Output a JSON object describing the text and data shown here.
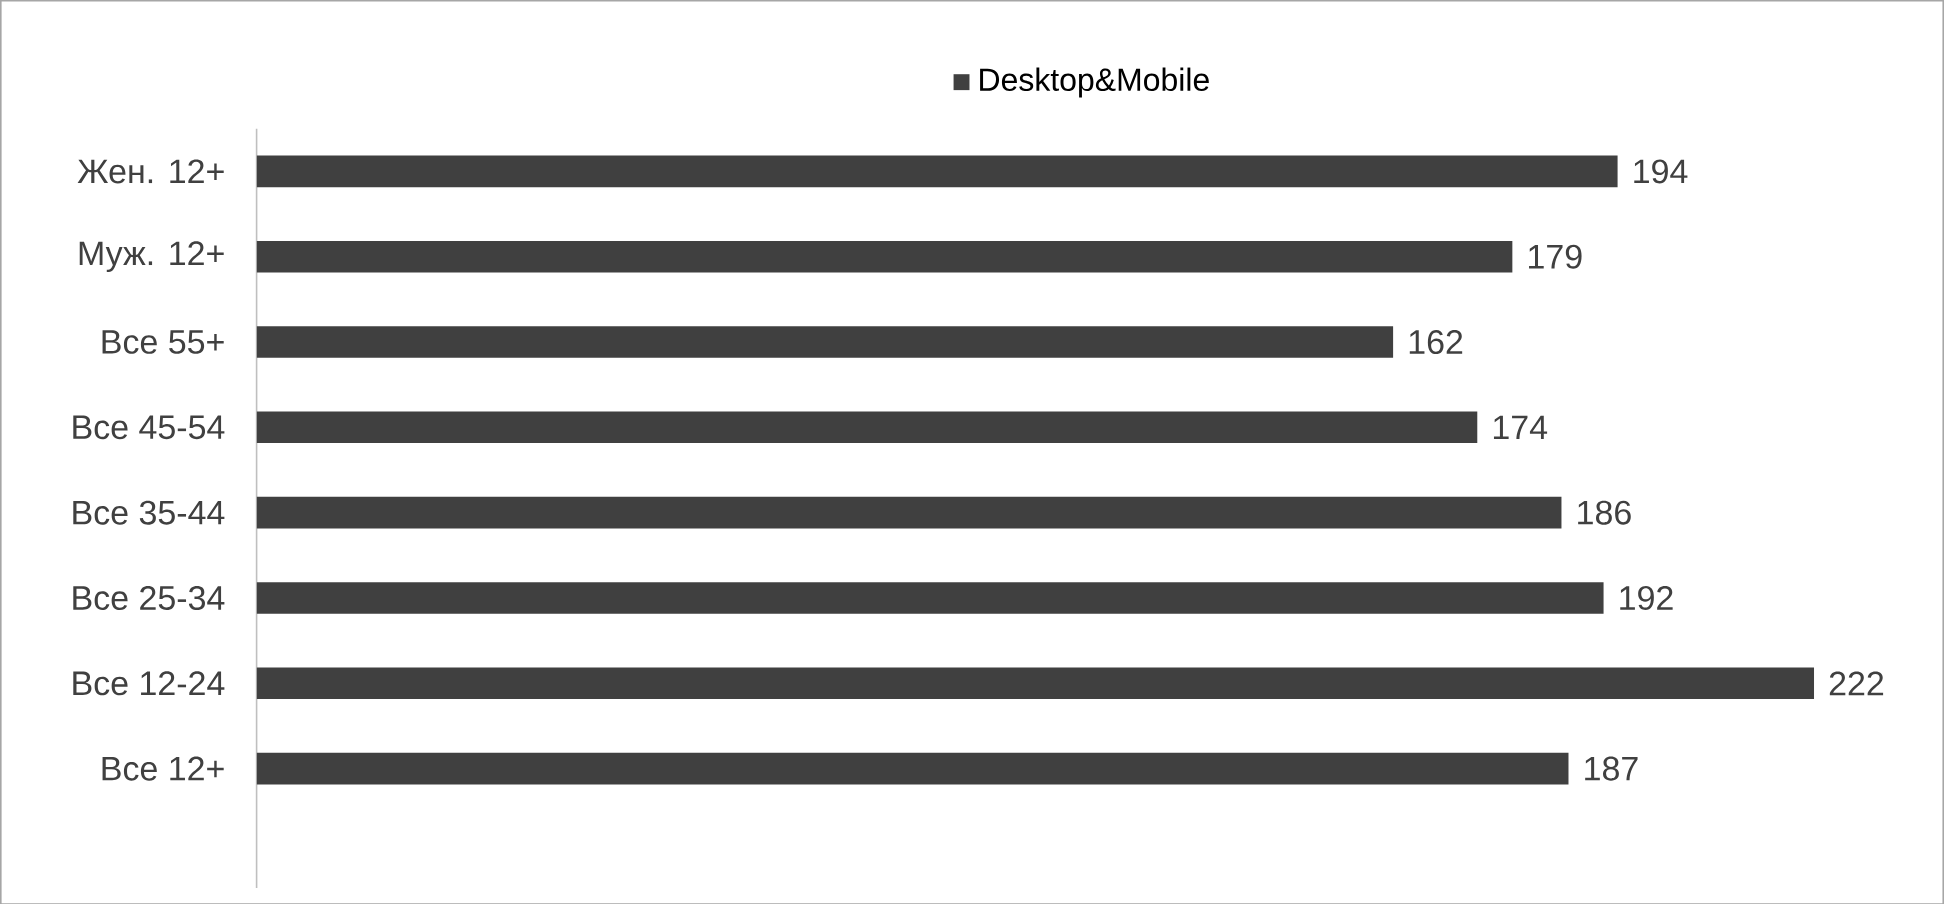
{
  "chart_data": {
    "type": "bar",
    "orientation": "horizontal",
    "categories": [
      "Жен. 12+",
      "Муж. 12+",
      "Все 55+",
      "Все 45-54",
      "Все 35-44",
      "Все 25-34",
      "Все 12-24",
      "Все 12+"
    ],
    "series": [
      {
        "name": "Desktop&Mobile",
        "color": "#404040",
        "values": [
          194,
          179,
          162,
          174,
          186,
          192,
          222,
          187
        ]
      }
    ],
    "data_labels": true,
    "legend": "top"
  }
}
